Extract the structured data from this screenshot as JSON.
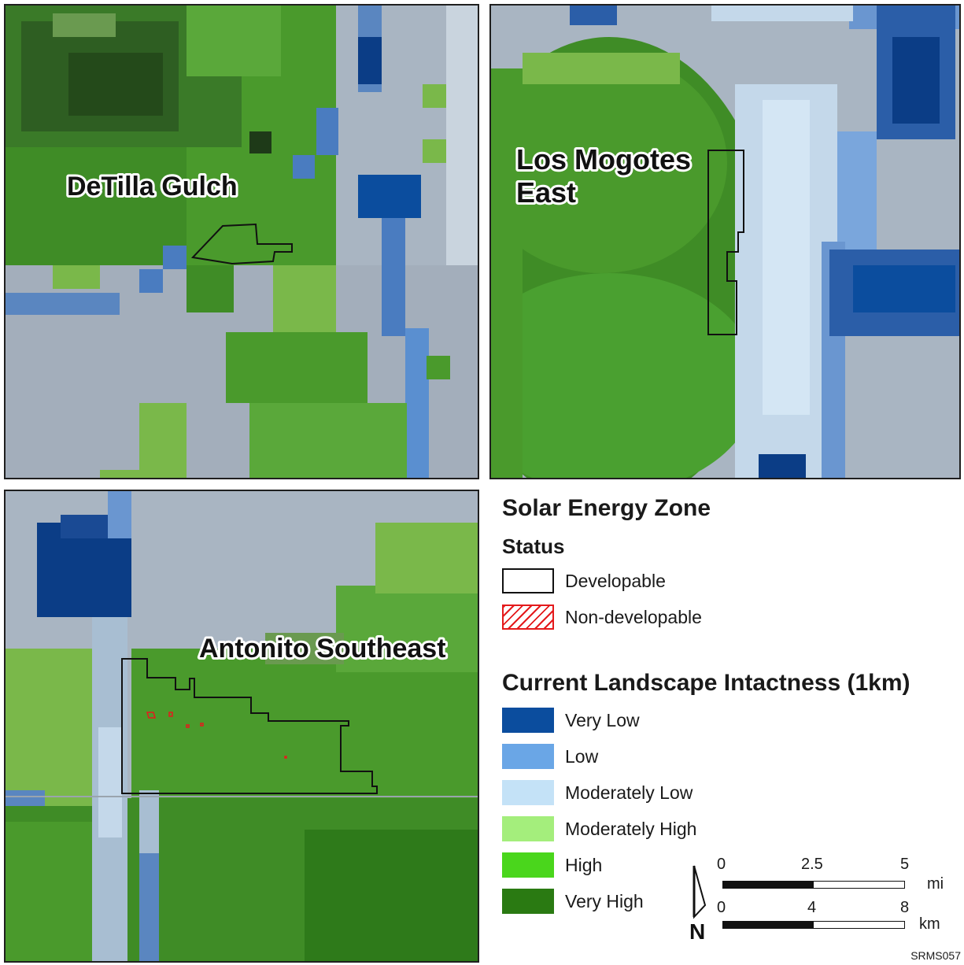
{
  "colors": {
    "very_low": "#0b4d9e",
    "low": "#6aa6e6",
    "moderately_low": "#c4e2f7",
    "moderately_high": "#a4ee7c",
    "high": "#4ad61c",
    "very_high": "#2a7a12",
    "base_gray": "#a9b5c2",
    "boundary": "#111111",
    "non_developable": "#e41a1c"
  },
  "maps": {
    "detilla": {
      "label": "DeTilla Gulch"
    },
    "mogotes": {
      "label_line1": "Los Mogotes",
      "label_line2": "East"
    },
    "antonito": {
      "label": "Antonito Southeast"
    }
  },
  "legend": {
    "title": "Solar Energy Zone",
    "status_heading": "Status",
    "status_items": [
      {
        "label": "Developable",
        "style": "outline"
      },
      {
        "label": "Non-developable",
        "style": "hatch"
      }
    ],
    "intactness_heading": "Current Landscape Intactness (1km)",
    "intactness_items": [
      {
        "label": "Very Low",
        "color": "#0b4d9e"
      },
      {
        "label": "Low",
        "color": "#6aa6e6"
      },
      {
        "label": "Moderately Low",
        "color": "#c4e2f7"
      },
      {
        "label": "Moderately High",
        "color": "#a4ee7c"
      },
      {
        "label": "High",
        "color": "#4ad61c"
      },
      {
        "label": "Very High",
        "color": "#2a7a12"
      }
    ]
  },
  "scale_bar": {
    "miles": {
      "ticks": [
        "0",
        "2.5",
        "5"
      ],
      "unit": "mi"
    },
    "kilometers": {
      "ticks": [
        "0",
        "4",
        "8"
      ],
      "unit": "km"
    },
    "north_letter": "N"
  },
  "credit": "SRMS057"
}
